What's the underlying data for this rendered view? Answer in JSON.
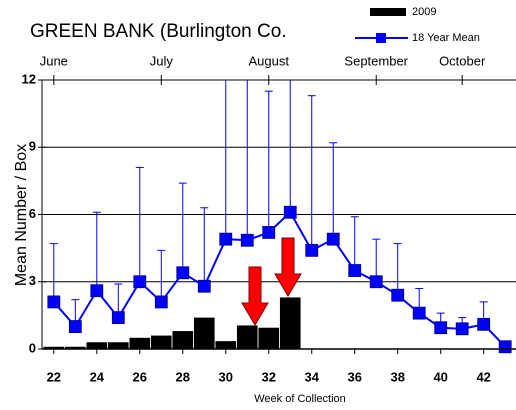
{
  "chart_data": {
    "type": "bar",
    "title": "GREEN BANK (Burlington Co.",
    "xlabel": "Week of Collection",
    "ylabel": "Mean Number / Box",
    "x": [
      22,
      23,
      24,
      25,
      26,
      27,
      28,
      29,
      30,
      31,
      32,
      33,
      34,
      35,
      36,
      37,
      38,
      39,
      40,
      41,
      42,
      43
    ],
    "series": [
      {
        "name": "2009",
        "type": "bar",
        "color": "#000000",
        "values": [
          0.1,
          0.1,
          0.3,
          0.3,
          0.5,
          0.6,
          0.8,
          1.4,
          0.35,
          1.05,
          0.95,
          2.3,
          null,
          null,
          null,
          null,
          null,
          null,
          null,
          null,
          null,
          null
        ]
      },
      {
        "name": "18 Year Mean",
        "type": "line",
        "color": "#0000ff",
        "values": [
          2.1,
          1.0,
          2.6,
          1.4,
          3.0,
          2.1,
          3.4,
          2.8,
          4.9,
          4.85,
          5.2,
          6.1,
          4.4,
          4.9,
          3.5,
          3.0,
          2.4,
          1.6,
          0.95,
          0.9,
          1.1,
          0.1
        ],
        "errors": [
          2.6,
          1.2,
          3.5,
          1.5,
          5.1,
          2.3,
          4.0,
          3.5,
          8,
          8,
          6.3,
          7,
          6.9,
          4.3,
          2.4,
          1.9,
          2.3,
          1.1,
          0.65,
          0.5,
          1.0,
          null
        ]
      }
    ],
    "xlim": [
      21.45,
      43.55
    ],
    "xticks": [
      22,
      24,
      26,
      28,
      30,
      32,
      34,
      36,
      38,
      40,
      42
    ],
    "x2ticks": [
      {
        "value": 22,
        "label": "June"
      },
      {
        "value": 27,
        "label": "July"
      },
      {
        "value": 32,
        "label": "August"
      },
      {
        "value": 37,
        "label": "September"
      },
      {
        "value": 41,
        "label": "October"
      }
    ],
    "ylim": [
      0,
      12
    ],
    "yticks": [
      0,
      3,
      6,
      9,
      12
    ],
    "grid": true
  }
}
